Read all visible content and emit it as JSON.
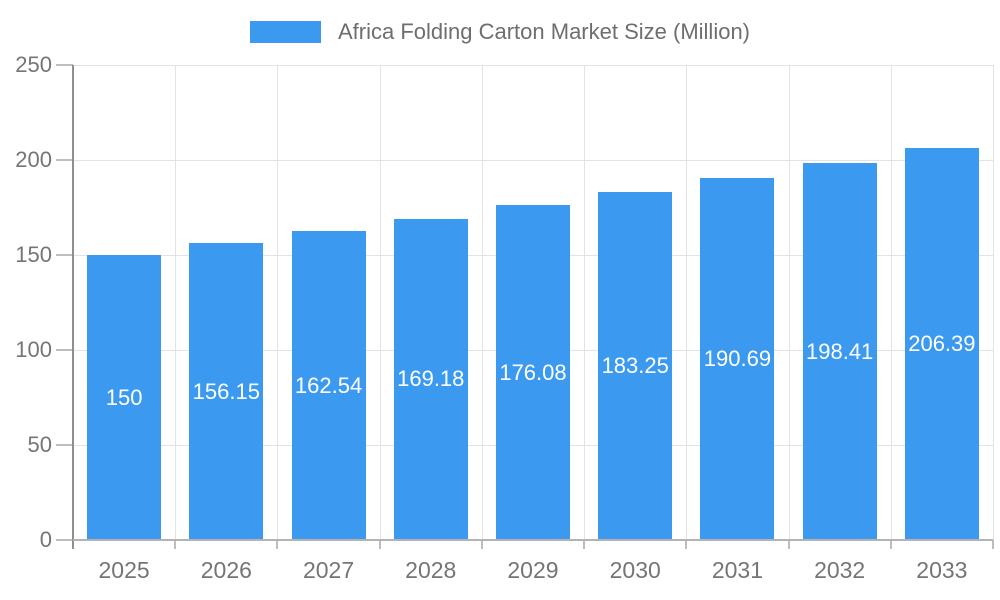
{
  "chart_data": {
    "type": "bar",
    "title": "Africa Folding Carton Market Size (Million)",
    "legend": [
      "Africa Folding Carton Market Size (Million)"
    ],
    "legend_position": "top-center",
    "categories": [
      "2025",
      "2026",
      "2027",
      "2028",
      "2029",
      "2030",
      "2031",
      "2032",
      "2033"
    ],
    "values": [
      150,
      156.15,
      162.54,
      169.18,
      176.08,
      183.25,
      190.69,
      198.41,
      206.39
    ],
    "value_labels": [
      "150",
      "156.15",
      "162.54",
      "169.18",
      "176.08",
      "183.25",
      "190.69",
      "198.41",
      "206.39"
    ],
    "xlabel": "",
    "ylabel": "",
    "ylim": [
      0,
      250
    ],
    "yticks": [
      0,
      50,
      100,
      150,
      200,
      250
    ],
    "grid": true
  },
  "colors": {
    "bar": "#3b9af0",
    "value_label": "#ffffff",
    "axis_text": "#757575",
    "legend_text": "#6e6e6e",
    "gridline": "#e3e3e3",
    "axis_line_y": "#8f8f8f",
    "axis_line_x": "#b3b3b3",
    "tick": "#bdbdbd",
    "background": "#ffffff"
  }
}
